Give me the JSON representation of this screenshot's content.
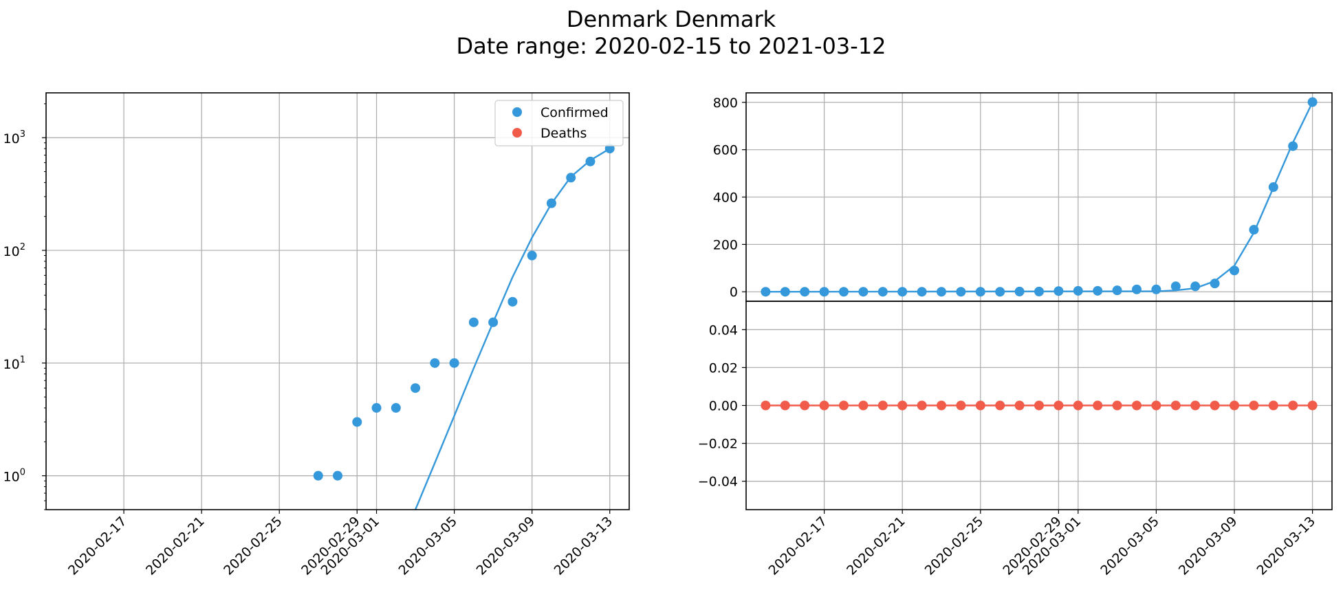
{
  "figure": {
    "title_line1": "Denmark Denmark",
    "title_line2": "Date range: 2020-02-15 to 2021-03-12"
  },
  "colors": {
    "confirmed": "#3498db",
    "deaths": "#f15c4a",
    "grid": "#b0b0b0"
  },
  "chart_data": [
    {
      "type": "scatter",
      "scale": "log",
      "x_ticks": [
        "2020-02-17",
        "2020-02-21",
        "2020-02-25",
        "2020-02-29",
        "2020-03-01",
        "2020-03-05",
        "2020-03-09",
        "2020-03-13"
      ],
      "y_ticks": [
        {
          "value": 1,
          "label": "10",
          "exp": "0"
        },
        {
          "value": 10,
          "label": "10",
          "exp": "1"
        },
        {
          "value": 100,
          "label": "10",
          "exp": "2"
        },
        {
          "value": 1000,
          "label": "10",
          "exp": "3"
        }
      ],
      "xlim": [
        "2020-02-13",
        "2020-03-14"
      ],
      "ylim": [
        0.5,
        2500
      ],
      "grid": true,
      "legend": {
        "placement": "upper-right",
        "entries": [
          "Confirmed",
          "Deaths"
        ]
      },
      "series": [
        {
          "name": "Confirmed",
          "points": [
            {
              "x": "2020-02-27",
              "y": 1
            },
            {
              "x": "2020-02-28",
              "y": 1
            },
            {
              "x": "2020-02-29",
              "y": 3
            },
            {
              "x": "2020-03-01",
              "y": 4
            },
            {
              "x": "2020-03-02",
              "y": 4
            },
            {
              "x": "2020-03-03",
              "y": 6
            },
            {
              "x": "2020-03-04",
              "y": 10
            },
            {
              "x": "2020-03-05",
              "y": 10
            },
            {
              "x": "2020-03-06",
              "y": 23
            },
            {
              "x": "2020-03-07",
              "y": 23
            },
            {
              "x": "2020-03-08",
              "y": 35
            },
            {
              "x": "2020-03-09",
              "y": 90
            },
            {
              "x": "2020-03-10",
              "y": 262
            },
            {
              "x": "2020-03-11",
              "y": 442
            },
            {
              "x": "2020-03-12",
              "y": 615
            },
            {
              "x": "2020-03-13",
              "y": 801
            }
          ],
          "fit_line": [
            {
              "x": "2020-03-02",
              "y": 0.35
            },
            {
              "x": "2020-03-03",
              "y": 0.5
            },
            {
              "x": "2020-03-04",
              "y": 1.3
            },
            {
              "x": "2020-03-05",
              "y": 3.4
            },
            {
              "x": "2020-03-06",
              "y": 9
            },
            {
              "x": "2020-03-07",
              "y": 23
            },
            {
              "x": "2020-03-08",
              "y": 58
            },
            {
              "x": "2020-03-09",
              "y": 130
            },
            {
              "x": "2020-03-10",
              "y": 260
            },
            {
              "x": "2020-03-11",
              "y": 450
            },
            {
              "x": "2020-03-12",
              "y": 630
            },
            {
              "x": "2020-03-13",
              "y": 800
            }
          ]
        },
        {
          "name": "Deaths",
          "points": []
        }
      ]
    },
    {
      "type": "line",
      "x_ticks": [
        "2020-02-17",
        "2020-02-21",
        "2020-02-25",
        "2020-02-29",
        "2020-03-01",
        "2020-03-05",
        "2020-03-09",
        "2020-03-13"
      ],
      "xlim": [
        "2020-02-13",
        "2020-03-14"
      ],
      "grid": true,
      "top": {
        "ylim": [
          -40,
          840
        ],
        "y_ticks": [
          0,
          200,
          400,
          600,
          800
        ],
        "series": [
          {
            "name": "Confirmed",
            "points": [
              {
                "x": "2020-02-14",
                "y": 0
              },
              {
                "x": "2020-02-15",
                "y": 0
              },
              {
                "x": "2020-02-16",
                "y": 0
              },
              {
                "x": "2020-02-17",
                "y": 0
              },
              {
                "x": "2020-02-18",
                "y": 0
              },
              {
                "x": "2020-02-19",
                "y": 0
              },
              {
                "x": "2020-02-20",
                "y": 0
              },
              {
                "x": "2020-02-21",
                "y": 0
              },
              {
                "x": "2020-02-22",
                "y": 0
              },
              {
                "x": "2020-02-23",
                "y": 0
              },
              {
                "x": "2020-02-24",
                "y": 0
              },
              {
                "x": "2020-02-25",
                "y": 0
              },
              {
                "x": "2020-02-26",
                "y": 0
              },
              {
                "x": "2020-02-27",
                "y": 1
              },
              {
                "x": "2020-02-28",
                "y": 1
              },
              {
                "x": "2020-02-29",
                "y": 3
              },
              {
                "x": "2020-03-01",
                "y": 4
              },
              {
                "x": "2020-03-02",
                "y": 4
              },
              {
                "x": "2020-03-03",
                "y": 6
              },
              {
                "x": "2020-03-04",
                "y": 10
              },
              {
                "x": "2020-03-05",
                "y": 10
              },
              {
                "x": "2020-03-06",
                "y": 23
              },
              {
                "x": "2020-03-07",
                "y": 23
              },
              {
                "x": "2020-03-08",
                "y": 35
              },
              {
                "x": "2020-03-09",
                "y": 90
              },
              {
                "x": "2020-03-10",
                "y": 262
              },
              {
                "x": "2020-03-11",
                "y": 442
              },
              {
                "x": "2020-03-12",
                "y": 615
              },
              {
                "x": "2020-03-13",
                "y": 801
              }
            ],
            "fit_line": [
              {
                "x": "2020-02-14",
                "y": 0
              },
              {
                "x": "2020-03-05",
                "y": 2
              },
              {
                "x": "2020-03-06",
                "y": 6
              },
              {
                "x": "2020-03-07",
                "y": 15
              },
              {
                "x": "2020-03-08",
                "y": 45
              },
              {
                "x": "2020-03-09",
                "y": 110
              },
              {
                "x": "2020-03-10",
                "y": 250
              },
              {
                "x": "2020-03-11",
                "y": 440
              },
              {
                "x": "2020-03-12",
                "y": 630
              },
              {
                "x": "2020-03-13",
                "y": 800
              }
            ]
          }
        ]
      },
      "bottom": {
        "ylim": [
          -0.055,
          0.055
        ],
        "y_ticks": [
          {
            "value": -0.04,
            "label": "−0.04"
          },
          {
            "value": -0.02,
            "label": "−0.02"
          },
          {
            "value": 0,
            "label": "0.00"
          },
          {
            "value": 0.02,
            "label": "0.02"
          },
          {
            "value": 0.04,
            "label": "0.04"
          }
        ],
        "series": [
          {
            "name": "Deaths",
            "points": [
              {
                "x": "2020-02-14",
                "y": 0
              },
              {
                "x": "2020-02-15",
                "y": 0
              },
              {
                "x": "2020-02-16",
                "y": 0
              },
              {
                "x": "2020-02-17",
                "y": 0
              },
              {
                "x": "2020-02-18",
                "y": 0
              },
              {
                "x": "2020-02-19",
                "y": 0
              },
              {
                "x": "2020-02-20",
                "y": 0
              },
              {
                "x": "2020-02-21",
                "y": 0
              },
              {
                "x": "2020-02-22",
                "y": 0
              },
              {
                "x": "2020-02-23",
                "y": 0
              },
              {
                "x": "2020-02-24",
                "y": 0
              },
              {
                "x": "2020-02-25",
                "y": 0
              },
              {
                "x": "2020-02-26",
                "y": 0
              },
              {
                "x": "2020-02-27",
                "y": 0
              },
              {
                "x": "2020-02-28",
                "y": 0
              },
              {
                "x": "2020-02-29",
                "y": 0
              },
              {
                "x": "2020-03-01",
                "y": 0
              },
              {
                "x": "2020-03-02",
                "y": 0
              },
              {
                "x": "2020-03-03",
                "y": 0
              },
              {
                "x": "2020-03-04",
                "y": 0
              },
              {
                "x": "2020-03-05",
                "y": 0
              },
              {
                "x": "2020-03-06",
                "y": 0
              },
              {
                "x": "2020-03-07",
                "y": 0
              },
              {
                "x": "2020-03-08",
                "y": 0
              },
              {
                "x": "2020-03-09",
                "y": 0
              },
              {
                "x": "2020-03-10",
                "y": 0
              },
              {
                "x": "2020-03-11",
                "y": 0
              },
              {
                "x": "2020-03-12",
                "y": 0
              },
              {
                "x": "2020-03-13",
                "y": 0
              }
            ]
          }
        ]
      }
    }
  ]
}
